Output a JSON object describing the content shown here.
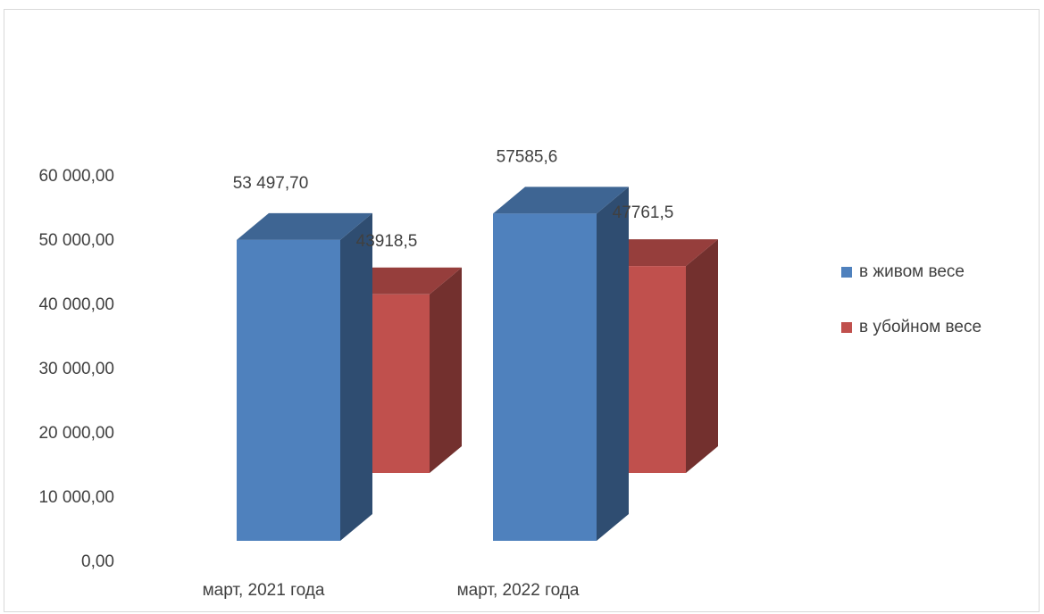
{
  "chart_data": {
    "type": "bar",
    "style": "3d-clustered-column",
    "categories": [
      "март, 2021 года",
      "март, 2022 года"
    ],
    "series": [
      {
        "name": "в живом весе",
        "color": "#4f81bd",
        "values": [
          53497.7,
          57585.6
        ],
        "data_labels": [
          "53 497,70",
          "57585,6"
        ]
      },
      {
        "name": "в убойном весе",
        "color": "#c0504d",
        "values": [
          43918.5,
          47761.5
        ],
        "data_labels": [
          "43918,5",
          "47761,5"
        ]
      }
    ],
    "y_ticks": [
      "0,00",
      "10 000,00",
      "20 000,00",
      "30 000,00",
      "40 000,00",
      "50 000,00",
      "60 000,00"
    ],
    "ylim": [
      0,
      60000
    ],
    "legend_position": "right",
    "grid": false,
    "title": "",
    "xlabel": "",
    "ylabel": ""
  }
}
